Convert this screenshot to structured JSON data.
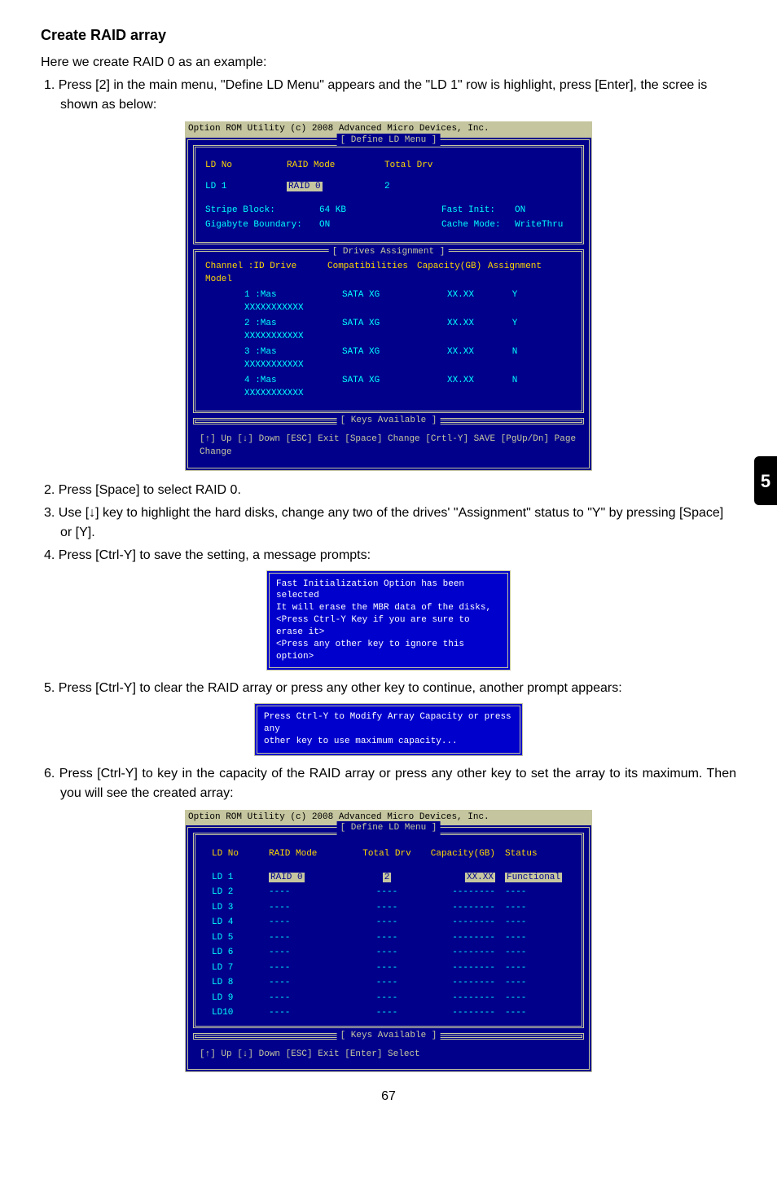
{
  "chapter_tab": "5",
  "page_number": "67",
  "heading": "Create RAID array",
  "intro": "Here we create RAID 0 as an example:",
  "step1": "1. Press [2] in the main menu, \"Define LD Menu\" appears and the \"LD 1\" row is highlight, press [Enter], the scree is shown as below:",
  "bios1": {
    "titlebar": "Option ROM Utility (c) 2008 Advanced Micro Devices, Inc.",
    "frame_label": "[ Define LD Menu ]",
    "row1_ldno": "LD No",
    "row1_mode": "RAID Mode",
    "row1_drv": "Total Drv",
    "row2_ldno": "LD   1",
    "row2_mode": "RAID 0",
    "row2_drv": "2",
    "stripe_lbl": "Stripe Block:",
    "stripe_val": "64   KB",
    "fast_lbl": "Fast Init:",
    "fast_val": "ON",
    "gig_lbl": "Gigabyte Boundary:",
    "gig_val": "ON",
    "cache_lbl": "Cache Mode:",
    "cache_val": "WriteThru",
    "drives_label": "[ Drives Assignment ]",
    "dh_ch": "Channel :ID   Drive Model",
    "dh_comp": "Compatibilities",
    "dh_cap": "Capacity(GB)",
    "dh_asg": "Assignment",
    "drives": [
      {
        "ch": "1 :Mas XXXXXXXXXXX",
        "comp": "SATA  XG",
        "cap": "XX.XX",
        "asg": "Y"
      },
      {
        "ch": "2 :Mas XXXXXXXXXXX",
        "comp": "SATA  XG",
        "cap": "XX.XX",
        "asg": "Y"
      },
      {
        "ch": "3 :Mas XXXXXXXXXXX",
        "comp": "SATA  XG",
        "cap": "XX.XX",
        "asg": "N"
      },
      {
        "ch": "4 :Mas XXXXXXXXXXX",
        "comp": "SATA  XG",
        "cap": "XX.XX",
        "asg": "N"
      }
    ],
    "keys_label": "[ Keys Available ]",
    "keys_text": "[↑] Up  [↓] Down  [ESC] Exit  [Space] Change  [Crtl-Y] SAVE   [PgUp/Dn] Page Change"
  },
  "step2": "2. Press [Space] to select RAID 0.",
  "step3": "3. Use [↓] key to highlight the hard disks, change any two of the drives' \"Assignment\" status to \"Y\" by pressing [Space] or [Y].",
  "step4": "4. Press [Ctrl-Y] to save the setting, a message prompts:",
  "prompt1": {
    "l1": "Fast Initialization Option has been selected",
    "l2": "It will erase the MBR data of the disks,",
    "l3": "<Press Ctrl-Y Key if you are sure to erase it>",
    "l4": "<Press any other key to ignore this option>"
  },
  "step5": "5. Press [Ctrl-Y] to clear the RAID array or press any other key to continue, another prompt appears:",
  "prompt2": {
    "l1": "Press Ctrl-Y to Modify Array Capacity or press any",
    "l2": "other key to use maximum capacity..."
  },
  "step6": "6. Press [Ctrl-Y] to key in the capacity of the RAID array or press any other key to set the array to its maximum. Then you will see the created array:",
  "bios2": {
    "titlebar": "Option ROM Utility (c) 2008 Advanced Micro Devices, Inc.",
    "frame_label": "[ Define LD Menu ]",
    "th_ldno": "LD No",
    "th_mode": "RAID Mode",
    "th_drv": "Total Drv",
    "th_cap": "Capacity(GB)",
    "th_stat": "Status",
    "rows": [
      {
        "ld": "LD   1",
        "mode": "RAID 0",
        "drv": "2",
        "cap": "XX.XX",
        "stat": "Functional",
        "hl": true
      },
      {
        "ld": "LD   2",
        "mode": "----",
        "drv": "----",
        "cap": "--------",
        "stat": "----"
      },
      {
        "ld": "LD   3",
        "mode": "----",
        "drv": "----",
        "cap": "--------",
        "stat": "----"
      },
      {
        "ld": "LD   4",
        "mode": "----",
        "drv": "----",
        "cap": "--------",
        "stat": "----"
      },
      {
        "ld": "LD   5",
        "mode": "----",
        "drv": "----",
        "cap": "--------",
        "stat": "----"
      },
      {
        "ld": "LD   6",
        "mode": "----",
        "drv": "----",
        "cap": "--------",
        "stat": "----"
      },
      {
        "ld": "LD   7",
        "mode": "----",
        "drv": "----",
        "cap": "--------",
        "stat": "----"
      },
      {
        "ld": "LD   8",
        "mode": "----",
        "drv": "----",
        "cap": "--------",
        "stat": "----"
      },
      {
        "ld": "LD   9",
        "mode": "----",
        "drv": "----",
        "cap": "--------",
        "stat": "----"
      },
      {
        "ld": "LD10",
        "mode": "----",
        "drv": "----",
        "cap": "--------",
        "stat": "----"
      }
    ],
    "keys_label": "[ Keys Available ]",
    "keys_text": "[↑] Up     [↓] Down     [ESC] Exit     [Enter] Select"
  }
}
